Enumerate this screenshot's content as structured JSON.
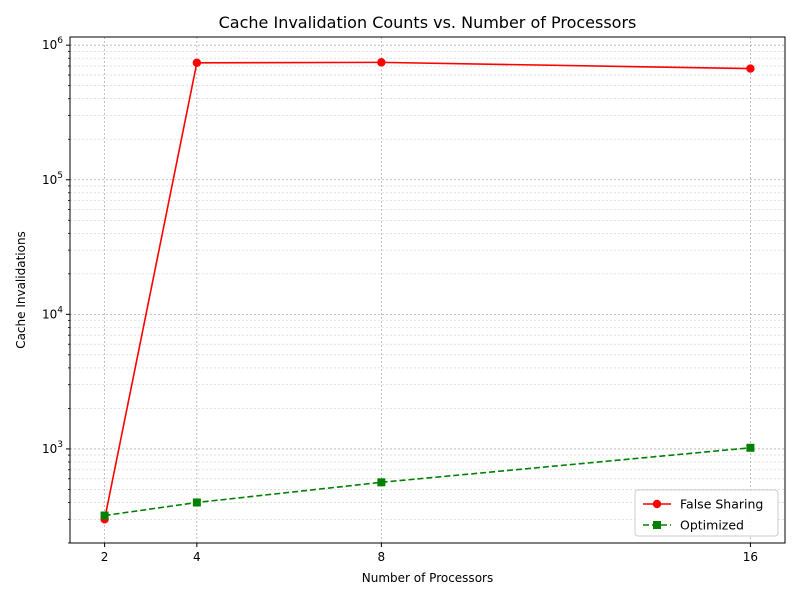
{
  "chart_data": {
    "type": "line",
    "title": "Cache Invalidation Counts vs. Number of Processors",
    "xlabel": "Number of Processors",
    "ylabel": "Cache Invalidations",
    "x": [
      2,
      4,
      8,
      16
    ],
    "x_ticks": [
      "2",
      "4",
      "8",
      "16"
    ],
    "y_scale": "log",
    "ylim": [
      200,
      1150000
    ],
    "y_ticks": [
      {
        "value": 1000,
        "base": "10",
        "exp": "3"
      },
      {
        "value": 10000,
        "base": "10",
        "exp": "4"
      },
      {
        "value": 100000,
        "base": "10",
        "exp": "5"
      },
      {
        "value": 1000000,
        "base": "10",
        "exp": "6"
      }
    ],
    "grid": true,
    "legend_position": "bottom-right",
    "series": [
      {
        "name": "False Sharing",
        "values": [
          300,
          740000,
          745000,
          670000
        ],
        "color": "#ff0000",
        "marker": "circle",
        "line": "solid"
      },
      {
        "name": "Optimized",
        "values": [
          320,
          400,
          565,
          1020
        ],
        "color": "#008000",
        "marker": "square",
        "line": "dashed"
      }
    ]
  }
}
